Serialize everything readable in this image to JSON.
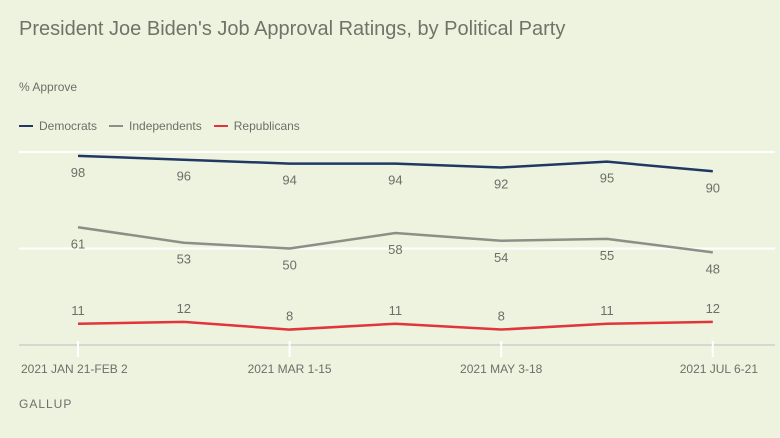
{
  "chart_data": {
    "type": "line",
    "title": "President Joe Biden's Job Approval Ratings, by Political Party",
    "ylabel": "% Approve",
    "xlabel": "",
    "ylim": [
      0,
      100
    ],
    "gridlines_y": [
      50,
      100
    ],
    "legend_position": "top-left",
    "x_tick_labels": [
      {
        "index": 0,
        "label": "2021 JAN 21-FEB 2"
      },
      {
        "index": 2,
        "label": "2021 MAR 1-15"
      },
      {
        "index": 4,
        "label": "2021 MAY 3-18"
      },
      {
        "index": 6,
        "label": "2021 JUL 6-21"
      }
    ],
    "series": [
      {
        "name": "Democrats",
        "color": "#1f3864",
        "values": [
          98,
          96,
          94,
          94,
          92,
          95,
          90
        ]
      },
      {
        "name": "Independents",
        "color": "#8c8f88",
        "values": [
          61,
          53,
          50,
          58,
          54,
          55,
          48
        ]
      },
      {
        "name": "Republicans",
        "color": "#e0353b",
        "values": [
          11,
          12,
          8,
          11,
          8,
          11,
          12
        ]
      }
    ],
    "source": "GALLUP"
  }
}
